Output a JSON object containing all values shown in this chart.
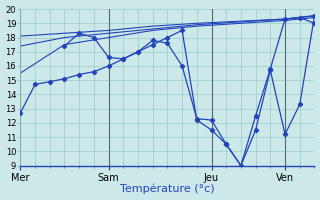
{
  "background_color": "#cce8e8",
  "grid_color": "#99cccc",
  "line_color": "#2244bb",
  "vline_color": "#556677",
  "xlabel": "Température (°c)",
  "xlabel_fontsize": 8,
  "tick_labels": [
    "Mer",
    "Sam",
    "Jeu",
    "Ven"
  ],
  "ylim": [
    9,
    20
  ],
  "yticks": [
    9,
    10,
    11,
    12,
    13,
    14,
    15,
    16,
    17,
    18,
    19,
    20
  ],
  "ytick_fontsize": 6,
  "xtick_fontsize": 7,
  "n_points": 21,
  "s1_x": [
    0,
    1,
    2,
    3,
    4,
    5,
    6,
    7,
    8,
    9,
    10,
    11,
    12,
    13,
    14,
    15,
    16,
    17,
    18,
    19,
    20
  ],
  "s1_y": [
    12.7,
    14.7,
    14.9,
    15.1,
    15.4,
    15.6,
    16.0,
    16.5,
    17.0,
    17.8,
    17.6,
    16.0,
    12.3,
    12.2,
    10.5,
    9.0,
    12.5,
    15.8,
    19.3,
    19.4,
    19.0
  ],
  "s2_x": [
    3,
    4,
    5,
    6,
    7,
    8,
    9,
    10,
    11,
    12,
    13,
    14,
    15,
    16,
    17,
    18,
    19,
    20
  ],
  "s2_y": [
    17.4,
    18.3,
    18.0,
    16.6,
    16.5,
    17.0,
    17.5,
    18.0,
    18.5,
    12.2,
    11.5,
    10.5,
    9.0,
    11.5,
    15.7,
    11.2,
    13.3,
    19.5
  ],
  "s3_x": [
    0,
    3,
    6,
    9,
    12,
    15,
    18,
    20
  ],
  "s3_y": [
    15.5,
    17.5,
    18.0,
    18.5,
    18.8,
    19.0,
    19.2,
    19.4
  ],
  "s4_x": [
    0,
    3,
    6,
    9,
    12,
    15,
    18,
    20
  ],
  "s4_y": [
    17.4,
    18.0,
    18.3,
    18.6,
    18.9,
    19.1,
    19.3,
    19.5
  ],
  "s5_x": [
    0,
    3,
    6,
    9,
    12,
    15,
    18,
    20
  ],
  "s5_y": [
    18.1,
    18.3,
    18.5,
    18.8,
    19.0,
    19.15,
    19.3,
    19.55
  ],
  "vline_positions": [
    0,
    6,
    13,
    18
  ],
  "xtick_positions": [
    0,
    6,
    13,
    18
  ]
}
